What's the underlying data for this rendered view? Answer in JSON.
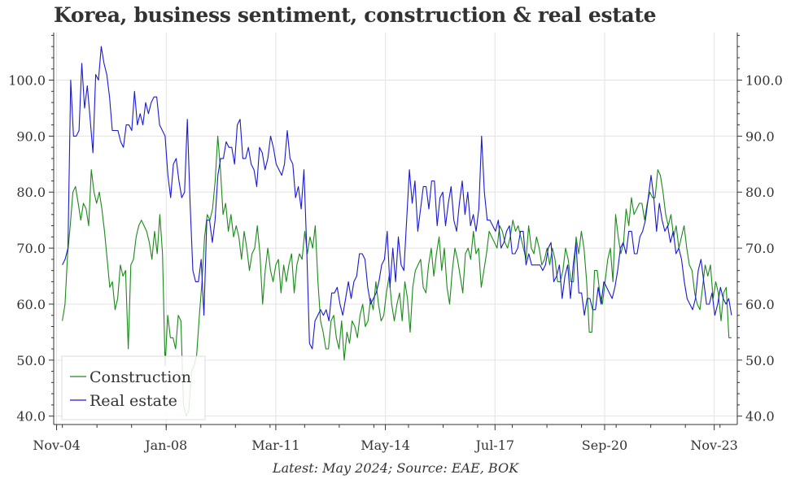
{
  "title": "Korea, business sentiment, construction & real estate",
  "source": "Latest: May 2024; Source: EAE, BOK",
  "colors": {
    "construction": "#1a8a1a",
    "real_estate": "#1a1ad0",
    "grid": "#e3e3e3",
    "axis": "#333333"
  },
  "chart_data": {
    "type": "line",
    "title": "Korea, business sentiment, construction & real estate",
    "xlabel": "",
    "ylabel": "",
    "x_ticks": [
      "Nov-04",
      "Jan-08",
      "Mar-11",
      "May-14",
      "Jul-17",
      "Sep-20",
      "Nov-23"
    ],
    "y_ticks": [
      "40.0",
      "50.0",
      "60.0",
      "70.0",
      "80.0",
      "90.0",
      "100.0"
    ],
    "xlim": [
      "2004-10",
      "2024-07"
    ],
    "ylim": [
      38.5,
      108.5
    ],
    "grid": true,
    "legend": "bottom-left",
    "x_start": "2005-01",
    "x_end": "2024-05",
    "series": [
      {
        "name": "Construction",
        "color": "#1a8a1a",
        "values": [
          57,
          60,
          69,
          74,
          80,
          81,
          78,
          75,
          78,
          77,
          74,
          84,
          80,
          78,
          80,
          77,
          73,
          68,
          63,
          64,
          59,
          61,
          67,
          65,
          66,
          52,
          67,
          68,
          72,
          74,
          75,
          74,
          73,
          71,
          68,
          73,
          69,
          76,
          69,
          49,
          58,
          54,
          54,
          52,
          58,
          57,
          42,
          40,
          41,
          48,
          49,
          51,
          58,
          64,
          72,
          76,
          75,
          77,
          82,
          90,
          84,
          76,
          78,
          73,
          76,
          72,
          74,
          72,
          68,
          73,
          70,
          66,
          69,
          70,
          74,
          69,
          60,
          66,
          70,
          66,
          64,
          67,
          68,
          62,
          67,
          64,
          67,
          69,
          62,
          67,
          69,
          68,
          73,
          69,
          72,
          70,
          74,
          64,
          57,
          55,
          52,
          52,
          57,
          58,
          54,
          52,
          57,
          50,
          55,
          53,
          57,
          56,
          54,
          58,
          60,
          56,
          57,
          61,
          59,
          64,
          60,
          57,
          58,
          62,
          65,
          60,
          57,
          60,
          62,
          57,
          64,
          61,
          55,
          63,
          66,
          67,
          68,
          63,
          62,
          67,
          70,
          65,
          69,
          72,
          66,
          70,
          63,
          60,
          66,
          70,
          68,
          65,
          62,
          69,
          70,
          68,
          73,
          69,
          70,
          63,
          66,
          69,
          73,
          72,
          71,
          70,
          74,
          73,
          71,
          70,
          72,
          75,
          73,
          74,
          72,
          70,
          68,
          74,
          70,
          69,
          72,
          70,
          67,
          68,
          70,
          67,
          70,
          68,
          64,
          64,
          66,
          70,
          68,
          64,
          64,
          72,
          69,
          73,
          70,
          64,
          55,
          55,
          66,
          66,
          62,
          60,
          64,
          68,
          70,
          64,
          76,
          72,
          69,
          71,
          77,
          74,
          79,
          76,
          77,
          78,
          78,
          75,
          78,
          80,
          79,
          79,
          84,
          83,
          80,
          76,
          74,
          76,
          72,
          74,
          70,
          72,
          74,
          70,
          67,
          66,
          62,
          60,
          59,
          63,
          67,
          65,
          67,
          61,
          64,
          62,
          57,
          62,
          63,
          54,
          54
        ]
      },
      {
        "name": "Real estate",
        "color": "#1a1ad0",
        "values": [
          67,
          68,
          70,
          100,
          90,
          90,
          91,
          103,
          95,
          99,
          93,
          87,
          101,
          100,
          106,
          103,
          101,
          97,
          91,
          91,
          91,
          89,
          88,
          92,
          92,
          91,
          98,
          92,
          94,
          92,
          96,
          94,
          96,
          97,
          97,
          92,
          91,
          90,
          83,
          79,
          85,
          86,
          82,
          79,
          80,
          93,
          78,
          66,
          64,
          64,
          68,
          58,
          75,
          75,
          71,
          75,
          83,
          86,
          86,
          89,
          88,
          88,
          85,
          92,
          93,
          86,
          86,
          88,
          85,
          84,
          81,
          88,
          87,
          84,
          86,
          90,
          88,
          85,
          84,
          83,
          85,
          91,
          86,
          85,
          79,
          81,
          77,
          84,
          70,
          53,
          52,
          57,
          58,
          59,
          58,
          59,
          57,
          62,
          62,
          63,
          60,
          58,
          61,
          64,
          61,
          64,
          65,
          69,
          69,
          68,
          63,
          60,
          61,
          62,
          64,
          67,
          68,
          73,
          63,
          70,
          64,
          72,
          67,
          66,
          75,
          84,
          78,
          82,
          73,
          77,
          81,
          81,
          77,
          82,
          82,
          74,
          79,
          80,
          74,
          78,
          81,
          75,
          73,
          78,
          82,
          76,
          80,
          74,
          76,
          73,
          77,
          90,
          80,
          75,
          75,
          74,
          73,
          75,
          70,
          71,
          73,
          74,
          69,
          69,
          70,
          73,
          73,
          67,
          69,
          67,
          67,
          67,
          67,
          66,
          67,
          70,
          71,
          64,
          65,
          67,
          61,
          65,
          67,
          61,
          67,
          71,
          62,
          62,
          58,
          61,
          61,
          59,
          59,
          63,
          60,
          64,
          63,
          62,
          61,
          63,
          66,
          70,
          71,
          69,
          73,
          73,
          69,
          69,
          72,
          73,
          75,
          79,
          83,
          79,
          73,
          78,
          75,
          73,
          74,
          71,
          73,
          69,
          70,
          68,
          64,
          61,
          60,
          59,
          61,
          66,
          68,
          64,
          60,
          60,
          62,
          58,
          60,
          63,
          61,
          60,
          61,
          58
        ]
      }
    ]
  }
}
